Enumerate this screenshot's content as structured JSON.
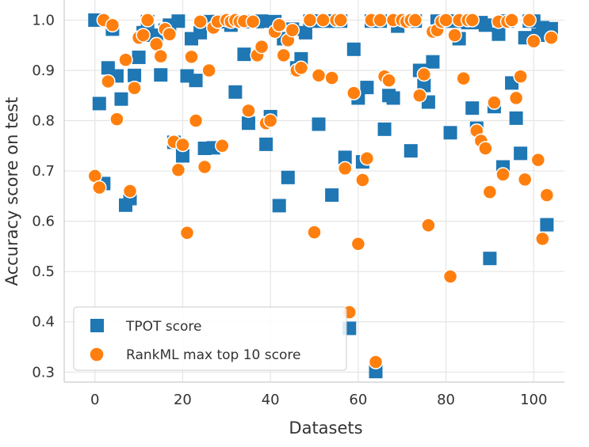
{
  "chart_data": {
    "type": "scatter",
    "xlabel": "Datasets",
    "ylabel": "Accuracy score on test",
    "xlim": [
      -7,
      107
    ],
    "ylim": [
      0.28,
      1.04
    ],
    "xticks": [
      0,
      20,
      40,
      60,
      80,
      100
    ],
    "yticks": [
      0.3,
      0.4,
      0.5,
      0.6,
      0.7,
      0.8,
      0.9,
      1.0
    ],
    "xtick_labels": [
      "0",
      "20",
      "40",
      "60",
      "80",
      "100"
    ],
    "ytick_labels": [
      "0.3",
      "0.4",
      "0.5",
      "0.6",
      "0.7",
      "0.8",
      "0.9",
      "1.0"
    ],
    "grid": true,
    "legend_position": "bottom-left",
    "series": [
      {
        "name": "TPOT score",
        "marker": "square",
        "color": "#1f77b4",
        "points": [
          [
            0,
            1.0
          ],
          [
            1,
            0.834
          ],
          [
            2,
            0.675
          ],
          [
            3,
            0.905
          ],
          [
            4,
            0.982
          ],
          [
            5,
            0.889
          ],
          [
            6,
            0.843
          ],
          [
            7,
            0.632
          ],
          [
            8,
            0.645
          ],
          [
            9,
            0.89
          ],
          [
            10,
            0.926
          ],
          [
            11,
            0.975
          ],
          [
            12,
            0.997
          ],
          [
            13,
            0.97
          ],
          [
            14,
            0.96
          ],
          [
            15,
            0.891
          ],
          [
            16,
            0.98
          ],
          [
            17,
            0.99
          ],
          [
            18,
            0.757
          ],
          [
            19,
            0.998
          ],
          [
            20,
            0.73
          ],
          [
            21,
            0.889
          ],
          [
            22,
            0.963
          ],
          [
            23,
            0.88
          ],
          [
            24,
            0.975
          ],
          [
            25,
            0.745
          ],
          [
            26,
            0.997
          ],
          [
            27,
            0.746
          ],
          [
            28,
            0.997
          ],
          [
            29,
            0.997
          ],
          [
            30,
            0.997
          ],
          [
            31,
            0.99
          ],
          [
            32,
            0.857
          ],
          [
            33,
            0.997
          ],
          [
            34,
            0.932
          ],
          [
            35,
            0.795
          ],
          [
            36,
            0.997
          ],
          [
            37,
            0.997
          ],
          [
            38,
            0.998
          ],
          [
            39,
            0.753
          ],
          [
            40,
            0.808
          ],
          [
            41,
            0.997
          ],
          [
            42,
            0.631
          ],
          [
            43,
            0.963
          ],
          [
            44,
            0.687
          ],
          [
            45,
            0.982
          ],
          [
            46,
            0.905
          ],
          [
            47,
            0.923
          ],
          [
            48,
            0.975
          ],
          [
            49,
            0.998
          ],
          [
            50,
            0.998
          ],
          [
            51,
            0.793
          ],
          [
            52,
            0.998
          ],
          [
            53,
            0.998
          ],
          [
            54,
            0.652
          ],
          [
            55,
            0.998
          ],
          [
            56,
            0.998
          ],
          [
            57,
            0.727
          ],
          [
            58,
            0.387
          ],
          [
            59,
            0.942
          ],
          [
            60,
            0.845
          ],
          [
            61,
            0.718
          ],
          [
            62,
            0.866
          ],
          [
            63,
            0.998
          ],
          [
            64,
            0.301
          ],
          [
            65,
            0.998
          ],
          [
            66,
            0.783
          ],
          [
            67,
            0.85
          ],
          [
            68,
            0.845
          ],
          [
            69,
            0.988
          ],
          [
            70,
            0.998
          ],
          [
            71,
            0.998
          ],
          [
            72,
            0.74
          ],
          [
            73,
            0.998
          ],
          [
            74,
            0.9
          ],
          [
            75,
            0.87
          ],
          [
            76,
            0.837
          ],
          [
            77,
            0.917
          ],
          [
            78,
            0.998
          ],
          [
            79,
            0.998
          ],
          [
            80,
            0.998
          ],
          [
            81,
            0.776
          ],
          [
            82,
            0.998
          ],
          [
            83,
            0.963
          ],
          [
            84,
            0.998
          ],
          [
            85,
            0.995
          ],
          [
            86,
            0.825
          ],
          [
            87,
            0.785
          ],
          [
            88,
            0.995
          ],
          [
            89,
            0.99
          ],
          [
            90,
            0.526
          ],
          [
            91,
            0.828
          ],
          [
            92,
            0.972
          ],
          [
            93,
            0.708
          ],
          [
            94,
            0.998
          ],
          [
            95,
            0.875
          ],
          [
            96,
            0.805
          ],
          [
            97,
            0.735
          ],
          [
            98,
            0.965
          ],
          [
            99,
            0.998
          ],
          [
            100,
            0.998
          ],
          [
            101,
            0.97
          ],
          [
            102,
            0.985
          ],
          [
            103,
            0.593
          ],
          [
            104,
            0.983
          ]
        ]
      },
      {
        "name": "RankML max top 10 score",
        "marker": "circle",
        "color": "#ff7f0e",
        "points": [
          [
            0,
            0.69
          ],
          [
            1,
            0.667
          ],
          [
            2,
            1.0
          ],
          [
            3,
            0.878
          ],
          [
            4,
            0.99
          ],
          [
            5,
            0.803
          ],
          [
            7,
            0.921
          ],
          [
            8,
            0.66
          ],
          [
            9,
            0.865
          ],
          [
            10,
            0.965
          ],
          [
            11,
            0.97
          ],
          [
            12,
            1.0
          ],
          [
            14,
            0.952
          ],
          [
            15,
            0.928
          ],
          [
            16,
            0.982
          ],
          [
            17,
            0.972
          ],
          [
            18,
            0.758
          ],
          [
            19,
            0.702
          ],
          [
            20,
            0.752
          ],
          [
            21,
            0.577
          ],
          [
            22,
            0.927
          ],
          [
            23,
            0.8
          ],
          [
            24,
            0.997
          ],
          [
            25,
            0.708
          ],
          [
            26,
            0.9
          ],
          [
            27,
            0.985
          ],
          [
            28,
            0.997
          ],
          [
            29,
            0.75
          ],
          [
            30,
            1.0
          ],
          [
            31,
            0.997
          ],
          [
            32,
            1.0
          ],
          [
            33,
            0.997
          ],
          [
            34,
            0.998
          ],
          [
            35,
            0.82
          ],
          [
            36,
            0.997
          ],
          [
            37,
            0.93
          ],
          [
            38,
            0.947
          ],
          [
            39,
            0.795
          ],
          [
            40,
            0.8
          ],
          [
            41,
            0.977
          ],
          [
            42,
            0.99
          ],
          [
            43,
            0.93
          ],
          [
            44,
            0.96
          ],
          [
            45,
            0.98
          ],
          [
            46,
            0.9
          ],
          [
            47,
            0.905
          ],
          [
            49,
            1.0
          ],
          [
            50,
            0.578
          ],
          [
            51,
            0.89
          ],
          [
            52,
            1.0
          ],
          [
            54,
            0.885
          ],
          [
            55,
            1.0
          ],
          [
            56,
            1.0
          ],
          [
            57,
            0.705
          ],
          [
            58,
            0.419
          ],
          [
            59,
            0.855
          ],
          [
            60,
            0.555
          ],
          [
            61,
            0.682
          ],
          [
            62,
            0.725
          ],
          [
            63,
            1.0
          ],
          [
            64,
            0.32
          ],
          [
            65,
            1.0
          ],
          [
            66,
            0.888
          ],
          [
            67,
            0.88
          ],
          [
            68,
            1.0
          ],
          [
            70,
            1.0
          ],
          [
            71,
            0.997
          ],
          [
            72,
            1.0
          ],
          [
            73,
            1.0
          ],
          [
            74,
            0.85
          ],
          [
            75,
            0.892
          ],
          [
            76,
            0.592
          ],
          [
            77,
            0.977
          ],
          [
            78,
            0.98
          ],
          [
            79,
            0.997
          ],
          [
            80,
            1.0
          ],
          [
            81,
            0.49
          ],
          [
            82,
            0.97
          ],
          [
            83,
            1.0
          ],
          [
            84,
            0.884
          ],
          [
            85,
            1.0
          ],
          [
            86,
            1.0
          ],
          [
            87,
            0.78
          ],
          [
            88,
            0.76
          ],
          [
            89,
            0.745
          ],
          [
            90,
            0.658
          ],
          [
            91,
            0.836
          ],
          [
            92,
            0.997
          ],
          [
            93,
            0.693
          ],
          [
            94,
            0.997
          ],
          [
            95,
            1.0
          ],
          [
            96,
            0.845
          ],
          [
            97,
            0.888
          ],
          [
            98,
            0.683
          ],
          [
            99,
            1.0
          ],
          [
            100,
            0.958
          ],
          [
            101,
            0.722
          ],
          [
            102,
            0.565
          ],
          [
            103,
            0.652
          ],
          [
            104,
            0.965
          ]
        ]
      }
    ]
  }
}
